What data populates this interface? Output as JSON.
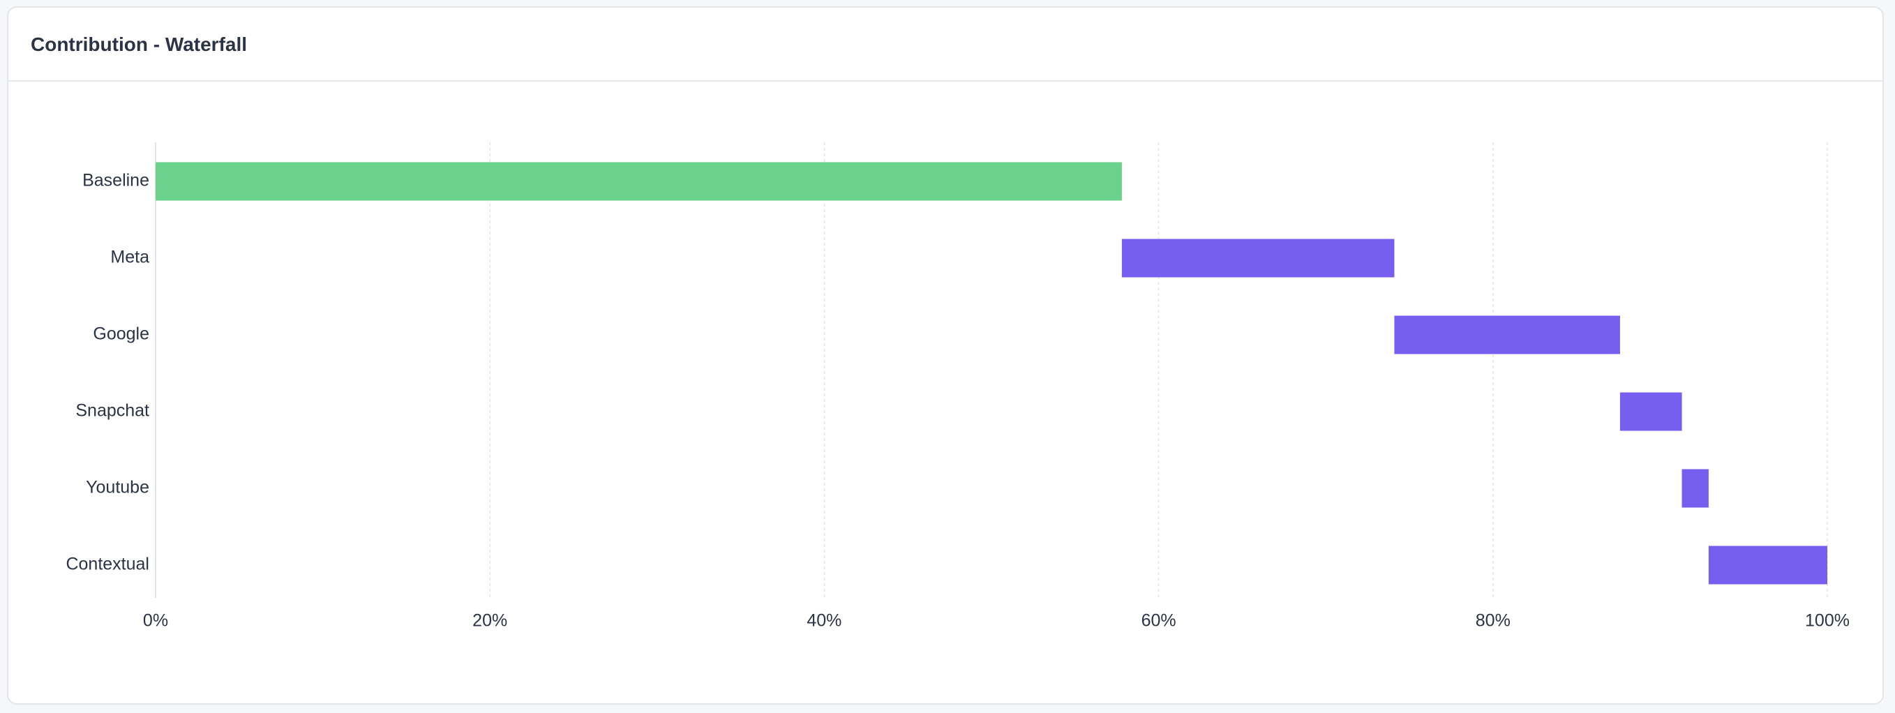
{
  "card": {
    "title": "Contribution - Waterfall"
  },
  "colors": {
    "baseline": "#6bd28b",
    "contribution": "#765ef0",
    "grid": "#e2e4e8",
    "axis_text": "#2b3444"
  },
  "chart_data": {
    "type": "bar",
    "subtype": "waterfall-horizontal",
    "title": "Contribution - Waterfall",
    "xlabel": "",
    "ylabel": "",
    "xlim": [
      0,
      100
    ],
    "x_ticks": [
      "0%",
      "20%",
      "40%",
      "60%",
      "80%",
      "100%"
    ],
    "x_tick_values": [
      0,
      20,
      40,
      60,
      80,
      100
    ],
    "grid": true,
    "legend": "none",
    "categories": [
      "Baseline",
      "Meta",
      "Google",
      "Snapchat",
      "Youtube",
      "Contextual"
    ],
    "series": [
      {
        "values": [
          57.8,
          16.3,
          13.5,
          3.7,
          1.6,
          7.1
        ],
        "starts": [
          0,
          57.8,
          74.1,
          87.6,
          91.3,
          92.9
        ],
        "ends": [
          57.8,
          74.1,
          87.6,
          91.3,
          92.9,
          100
        ]
      }
    ]
  }
}
